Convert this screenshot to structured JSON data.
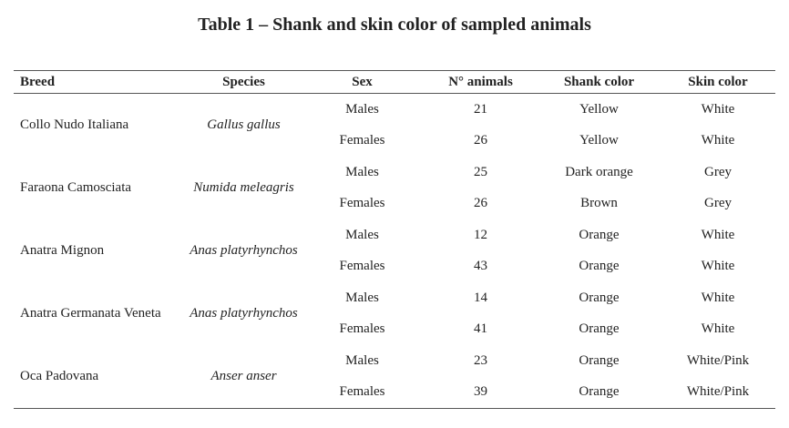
{
  "title": "Table 1 – Shank and skin color of sampled animals",
  "table": {
    "header": [
      "Breed",
      "Species",
      "Sex",
      "N° animals",
      "Shank color",
      "Skin color"
    ],
    "groups": [
      {
        "breed": "Collo Nudo Italiana",
        "species": "Gallus gallus",
        "rows": [
          [
            "Males",
            21,
            "Yellow",
            "White"
          ],
          [
            "Females",
            26,
            "Yellow",
            "White"
          ]
        ]
      },
      {
        "breed": "Faraona Camosciata",
        "species": "Numida meleagris",
        "rows": [
          [
            "Males",
            25,
            "Dark orange",
            "Grey"
          ],
          [
            "Females",
            26,
            "Brown",
            "Grey"
          ]
        ]
      },
      {
        "breed": "Anatra Mignon",
        "species": "Anas platyrhynchos",
        "rows": [
          [
            "Males",
            12,
            "Orange",
            "White"
          ],
          [
            "Females",
            43,
            "Orange",
            "White"
          ]
        ]
      },
      {
        "breed": "Anatra Germanata Veneta",
        "species": "Anas platyrhynchos",
        "rows": [
          [
            "Males",
            14,
            "Orange",
            "White"
          ],
          [
            "Females",
            41,
            "Orange",
            "White"
          ]
        ]
      },
      {
        "breed": "Oca Padovana",
        "species": "Anser anser",
        "rows": [
          [
            "Males",
            23,
            "Orange",
            "White/Pink"
          ],
          [
            "Females",
            39,
            "Orange",
            "White/Pink"
          ]
        ]
      }
    ]
  }
}
